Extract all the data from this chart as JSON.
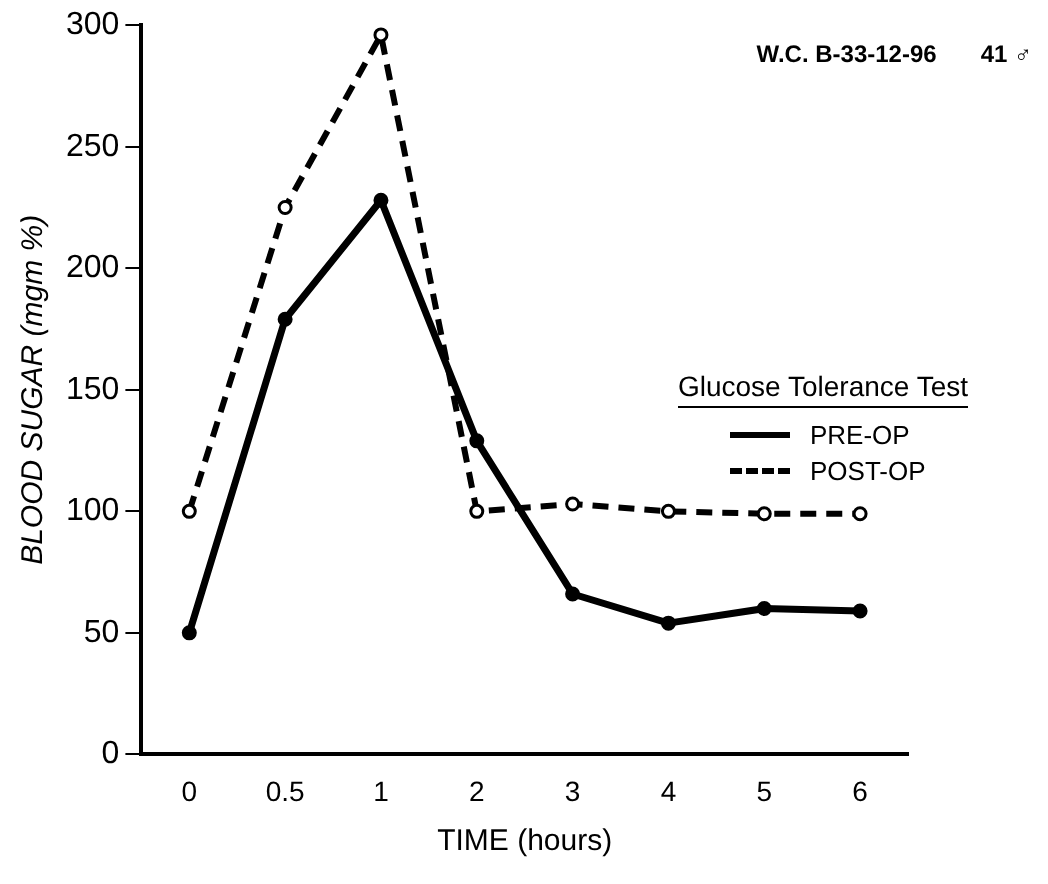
{
  "chart_data": {
    "type": "line",
    "categories": [
      "0",
      "0.5",
      "1",
      "2",
      "3",
      "4",
      "5",
      "6"
    ],
    "series": [
      {
        "name": "PRE-OP",
        "color": "#000000",
        "marker": "circle",
        "line_style": "solid",
        "values": [
          50,
          179,
          228,
          129,
          66,
          54,
          60,
          59
        ]
      },
      {
        "name": "POST-OP",
        "color": "#000000",
        "marker": "circle",
        "line_style": "dashed",
        "values": [
          100,
          225,
          296,
          100,
          103,
          100,
          99,
          99
        ]
      }
    ],
    "xlabel": "TIME (hours)",
    "ylabel": "BLOOD SUGAR (mgm %)",
    "ylim": [
      0,
      300
    ],
    "yticks": [
      0,
      50,
      100,
      150,
      200,
      250,
      300
    ],
    "legend": "right",
    "legend_title": "Glucose Tolerance Test",
    "annotations": [
      "W.C. B-33-12-96",
      "41 ♂"
    ],
    "grid": false
  }
}
